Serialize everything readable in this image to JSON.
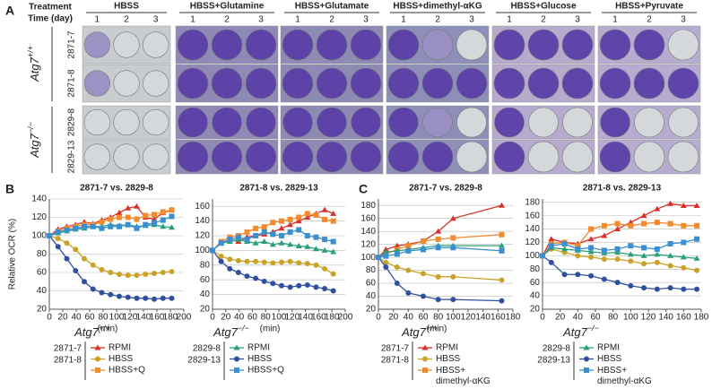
{
  "panel_a": {
    "label": "A",
    "treatment_label": "Treatment",
    "time_label": "Time (day)",
    "treatments": [
      {
        "name": "HBSS",
        "days": [
          1,
          2,
          3
        ]
      },
      {
        "name": "HBSS+Glutamine",
        "days": [
          1,
          2,
          3
        ]
      },
      {
        "name": "HBSS+Glutamate",
        "days": [
          1,
          2,
          3
        ]
      },
      {
        "name": "HBSS+dimethyl-αKG",
        "days": [
          1,
          2,
          3
        ]
      },
      {
        "name": "HBSS+Glucose",
        "days": [
          1,
          2,
          3
        ]
      },
      {
        "name": "HBSS+Pyruvate",
        "days": [
          1,
          2,
          3
        ]
      }
    ],
    "genotypes": [
      {
        "name": "Atg7",
        "superscript": "+/+",
        "cell_lines": [
          "2871-7",
          "2871-8"
        ]
      },
      {
        "name": "Atg7",
        "superscript": "−/−",
        "cell_lines": [
          "2829-8",
          "2829-13"
        ]
      }
    ]
  },
  "panel_b": {
    "label": "B",
    "legends": [
      {
        "name": "Atg7",
        "superscript": "+/+",
        "cell_lines": [
          "2871-7",
          "2871-8"
        ]
      },
      {
        "name": "Atg7",
        "superscript": "−/−",
        "cell_lines": [
          "2829-8",
          "2829-13"
        ]
      }
    ]
  },
  "panel_c": {
    "label": "C",
    "legends": [
      {
        "name": "Atg7",
        "superscript": "+/+",
        "cell_lines": [
          "2871-7",
          "2871-8"
        ]
      },
      {
        "name": "Atg7",
        "superscript": "−/−",
        "cell_lines": [
          "2829-8",
          "2829-13"
        ]
      }
    ]
  },
  "chart_data": [
    {
      "type": "line",
      "title": "2871-7 vs. 2829-8",
      "ylabel": "Relative OCR (%)",
      "xlabel": "(min)",
      "xlim": [
        0,
        200
      ],
      "xticks": [
        0,
        20,
        40,
        60,
        80,
        100,
        120,
        140,
        160,
        180,
        200
      ],
      "ylim": [
        20,
        140
      ],
      "yticks": [
        20,
        40,
        60,
        80,
        100,
        120,
        140
      ],
      "grid": true,
      "x": [
        0,
        13,
        26,
        39,
        52,
        65,
        78,
        91,
        104,
        117,
        130,
        143,
        156,
        169,
        182
      ],
      "series": [
        {
          "name": "RPMI",
          "color": "#d9302a",
          "marker": "triangle",
          "values": [
            100,
            107,
            110,
            112,
            115,
            113,
            117,
            120,
            125,
            130,
            132,
            120,
            118,
            125,
            128
          ]
        },
        {
          "name": "HBSS",
          "color": "#c9a227",
          "marker": "circle",
          "values": [
            100,
            97,
            92,
            85,
            75,
            68,
            63,
            60,
            58,
            57,
            57,
            58,
            59,
            60,
            61
          ]
        },
        {
          "name": "HBSS+Q",
          "color": "#f28a2e",
          "marker": "square",
          "values": [
            100,
            105,
            108,
            110,
            112,
            112,
            115,
            118,
            120,
            120,
            118,
            122,
            123,
            126,
            128
          ]
        },
        {
          "name": "RPMI",
          "color": "#2aa07a",
          "marker": "triangle",
          "values": [
            100,
            103,
            105,
            107,
            108,
            110,
            110,
            112,
            111,
            112,
            110,
            111,
            112,
            110,
            109
          ]
        },
        {
          "name": "HBSS",
          "color": "#2f4f9f",
          "marker": "circle",
          "values": [
            100,
            88,
            75,
            62,
            50,
            42,
            38,
            36,
            34,
            33,
            32,
            32,
            31,
            32,
            32
          ]
        },
        {
          "name": "HBSS+Q",
          "color": "#3a8fd0",
          "marker": "square",
          "values": [
            100,
            104,
            106,
            108,
            110,
            110,
            108,
            110,
            110,
            112,
            108,
            112,
            114,
            117,
            121
          ]
        }
      ]
    },
    {
      "type": "line",
      "title": "2871-8 vs. 2829-13",
      "xlabel": "(min)",
      "xlim": [
        0,
        200
      ],
      "xticks": [
        0,
        20,
        40,
        60,
        80,
        100,
        120,
        140,
        160,
        180,
        200
      ],
      "ylim": [
        20,
        170
      ],
      "yticks": [
        20,
        40,
        60,
        80,
        100,
        120,
        140,
        160
      ],
      "grid": true,
      "x": [
        0,
        13,
        26,
        39,
        52,
        65,
        78,
        91,
        104,
        117,
        130,
        143,
        156,
        169,
        182
      ],
      "series": [
        {
          "name": "RPMI",
          "color": "#d9302a",
          "marker": "triangle",
          "values": [
            100,
            110,
            115,
            112,
            118,
            120,
            122,
            125,
            130,
            135,
            140,
            145,
            150,
            155,
            150
          ]
        },
        {
          "name": "HBSS",
          "color": "#c9a227",
          "marker": "circle",
          "values": [
            100,
            92,
            88,
            86,
            85,
            85,
            84,
            83,
            84,
            85,
            83,
            82,
            80,
            75,
            68
          ]
        },
        {
          "name": "HBSS+Q",
          "color": "#f28a2e",
          "marker": "square",
          "values": [
            100,
            112,
            118,
            120,
            125,
            130,
            132,
            138,
            140,
            142,
            145,
            150,
            148,
            142,
            140
          ]
        },
        {
          "name": "RPMI",
          "color": "#2aa07a",
          "marker": "triangle",
          "values": [
            100,
            110,
            112,
            115,
            112,
            110,
            112,
            108,
            110,
            108,
            106,
            105,
            102,
            100,
            98
          ]
        },
        {
          "name": "HBSS",
          "color": "#2f4f9f",
          "marker": "circle",
          "values": [
            100,
            85,
            75,
            70,
            65,
            62,
            58,
            55,
            52,
            50,
            52,
            53,
            50,
            48,
            45
          ]
        },
        {
          "name": "HBSS+Q",
          "color": "#3a8fd0",
          "marker": "square",
          "values": [
            100,
            110,
            115,
            118,
            115,
            120,
            125,
            122,
            120,
            125,
            128,
            120,
            118,
            115,
            112
          ]
        }
      ]
    },
    {
      "type": "line",
      "title": "2871-7 vs. 2829-8",
      "xlabel": "(min)",
      "xlim": [
        0,
        180
      ],
      "xticks": [
        0,
        20,
        40,
        60,
        80,
        100,
        120,
        140,
        160,
        180
      ],
      "ylim": [
        20,
        190
      ],
      "yticks": [
        20,
        40,
        60,
        80,
        100,
        120,
        140,
        160,
        180
      ],
      "grid": true,
      "x": [
        0,
        10,
        25,
        40,
        60,
        80,
        100,
        165
      ],
      "series": [
        {
          "name": "RPMI",
          "color": "#d9302a",
          "marker": "triangle",
          "values": [
            100,
            112,
            118,
            120,
            125,
            140,
            160,
            180
          ]
        },
        {
          "name": "HBSS",
          "color": "#c9a227",
          "marker": "circle",
          "values": [
            100,
            92,
            85,
            80,
            75,
            70,
            70,
            65
          ]
        },
        {
          "name": "HBSS+dimethyl-αKG",
          "color": "#f28a2e",
          "marker": "square",
          "values": [
            100,
            105,
            112,
            118,
            125,
            128,
            130,
            135
          ]
        },
        {
          "name": "RPMI",
          "color": "#2aa07a",
          "marker": "triangle",
          "values": [
            100,
            108,
            110,
            112,
            115,
            118,
            118,
            118
          ]
        },
        {
          "name": "HBSS",
          "color": "#2f4f9f",
          "marker": "circle",
          "values": [
            100,
            85,
            60,
            45,
            40,
            35,
            35,
            33
          ]
        },
        {
          "name": "HBSS+dimethyl-αKG",
          "color": "#3a8fd0",
          "marker": "square",
          "values": [
            100,
            102,
            105,
            110,
            112,
            115,
            115,
            110
          ]
        }
      ]
    },
    {
      "type": "line",
      "title": "2871-8 vs. 2829-13",
      "xlim": [
        0,
        180
      ],
      "xticks": [
        0,
        20,
        40,
        60,
        80,
        100,
        120,
        140,
        160,
        180
      ],
      "ylim": [
        20,
        185
      ],
      "yticks": [
        20,
        40,
        60,
        80,
        100,
        120,
        140,
        160,
        180
      ],
      "grid": true,
      "x": [
        0,
        10,
        25,
        40,
        55,
        70,
        85,
        100,
        115,
        130,
        145,
        160,
        175
      ],
      "series": [
        {
          "name": "RPMI",
          "color": "#d9302a",
          "marker": "triangle",
          "values": [
            100,
            125,
            120,
            118,
            125,
            130,
            140,
            150,
            160,
            170,
            178,
            175,
            175
          ]
        },
        {
          "name": "HBSS",
          "color": "#c9a227",
          "marker": "circle",
          "values": [
            100,
            110,
            105,
            100,
            98,
            95,
            95,
            92,
            88,
            90,
            85,
            82,
            78
          ]
        },
        {
          "name": "HBSS+dimethyl-αKG",
          "color": "#f28a2e",
          "marker": "square",
          "values": [
            100,
            118,
            120,
            115,
            140,
            145,
            148,
            145,
            148,
            150,
            148,
            145,
            145
          ]
        },
        {
          "name": "RPMI",
          "color": "#2aa07a",
          "marker": "triangle",
          "values": [
            100,
            112,
            110,
            108,
            106,
            104,
            105,
            102,
            100,
            102,
            100,
            98,
            96
          ]
        },
        {
          "name": "HBSS",
          "color": "#2f4f9f",
          "marker": "circle",
          "values": [
            100,
            90,
            72,
            72,
            70,
            65,
            60,
            55,
            52,
            50,
            52,
            50,
            50
          ]
        },
        {
          "name": "HBSS+dimethyl-αKG",
          "color": "#3a8fd0",
          "marker": "square",
          "values": [
            100,
            115,
            118,
            110,
            112,
            108,
            110,
            115,
            112,
            110,
            118,
            120,
            125
          ]
        }
      ]
    }
  ]
}
